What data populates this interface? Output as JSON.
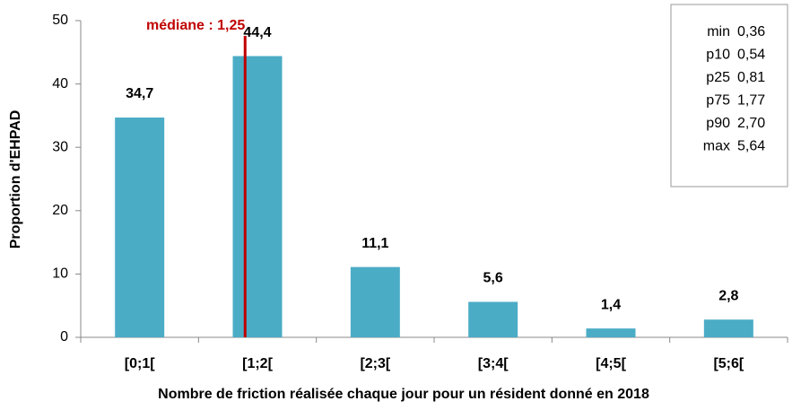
{
  "chart_data": {
    "type": "bar",
    "categories": [
      "[0;1[",
      "[1;2[",
      "[2;3[",
      "[3;4[",
      "[4;5[",
      "[5;6["
    ],
    "values": [
      34.7,
      44.4,
      11.1,
      5.6,
      1.4,
      2.8
    ],
    "value_labels": [
      "34,7",
      "44,4",
      "11,1",
      "5,6",
      "1,4",
      "2,8"
    ],
    "color": "#4bacc6",
    "ylim": [
      0,
      50
    ],
    "yticks": [
      0,
      10,
      20,
      30,
      40,
      50
    ],
    "x_label": "Nombre de friction réalisée chaque jour pour un résident donné en 2018",
    "y_label": "Proportion d'EHPAD",
    "median": {
      "text": "médiane : 1,25",
      "value": 1.25,
      "color": "#c00000"
    },
    "stats": [
      {
        "name": "min",
        "value": "0,36"
      },
      {
        "name": "p10",
        "value": "0,54"
      },
      {
        "name": "p25",
        "value": "0,81"
      },
      {
        "name": "p75",
        "value": "1,77"
      },
      {
        "name": "p90",
        "value": "2,70"
      },
      {
        "name": "max",
        "value": "5,64"
      }
    ]
  }
}
